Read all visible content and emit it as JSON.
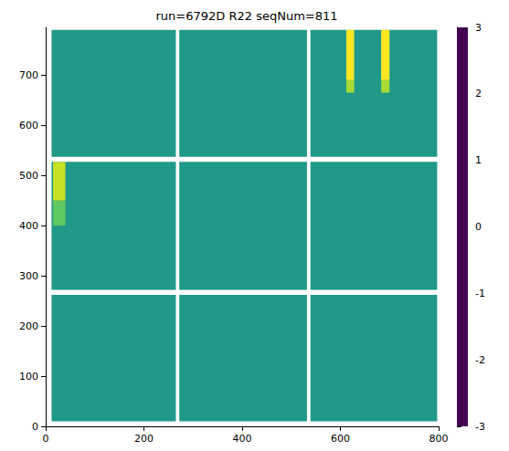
{
  "chart_data": {
    "type": "heatmap",
    "title": "run=6792D R22 seqNum=811",
    "color": "viridis",
    "xlim": [
      0,
      800
    ],
    "xticks": [
      0,
      200,
      400,
      600,
      800
    ],
    "ylim": [
      0,
      795
    ],
    "yticks": [
      0,
      100,
      200,
      300,
      400,
      500,
      600,
      700
    ],
    "cells": [
      [
        12,
        265,
        10,
        262,
        0.2
      ],
      [
        272,
        532,
        10,
        262,
        0.2
      ],
      [
        539,
        797,
        10,
        262,
        0.2
      ],
      [
        12,
        265,
        272,
        527,
        0.2
      ],
      [
        272,
        532,
        272,
        527,
        0.2
      ],
      [
        539,
        797,
        272,
        527,
        0.2
      ],
      [
        12,
        265,
        537,
        790,
        0.2
      ],
      [
        272,
        532,
        537,
        790,
        0.2
      ],
      [
        539,
        797,
        537,
        790,
        0.2
      ],
      [
        15,
        40,
        400,
        450,
        1.5
      ],
      [
        15,
        40,
        450,
        527,
        2.5
      ],
      [
        612,
        628,
        665,
        690,
        2.2
      ],
      [
        612,
        628,
        690,
        790,
        3
      ],
      [
        683,
        700,
        665,
        690,
        2.2
      ],
      [
        683,
        700,
        690,
        790,
        3
      ]
    ],
    "colorbar": {
      "range": [
        -3,
        3
      ],
      "ticks": [
        -3,
        -2,
        -1,
        0,
        1,
        2,
        3
      ]
    }
  }
}
